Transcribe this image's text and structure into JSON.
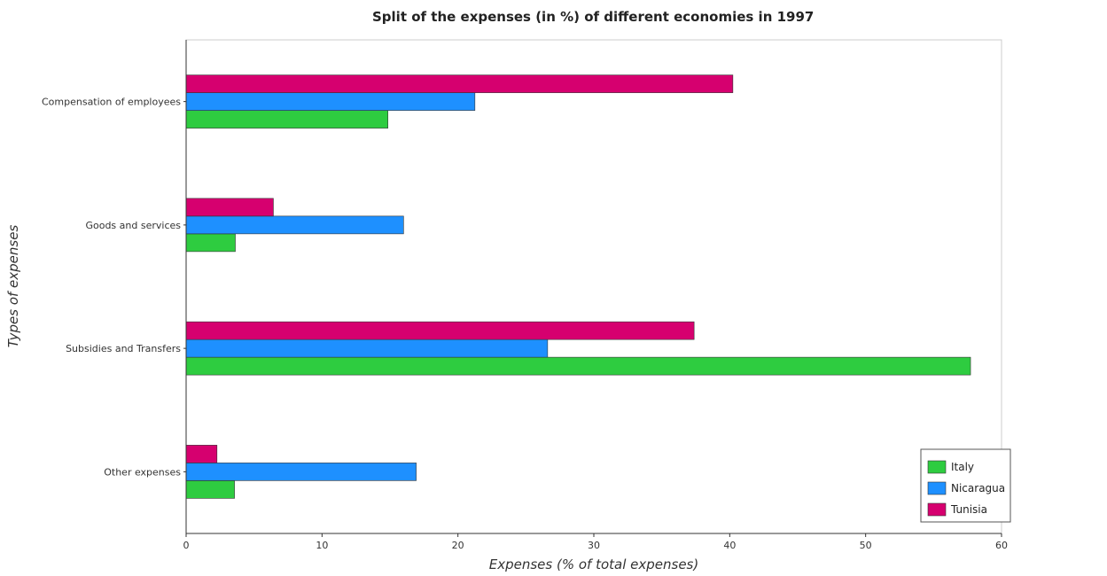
{
  "chart_data": {
    "type": "bar",
    "orientation": "horizontal",
    "title": "Split of the expenses (in %) of different economies in 1997",
    "xlabel": "Expenses (% of total expenses)",
    "ylabel": "Types of expenses",
    "xlim": [
      0,
      60
    ],
    "xticks": [
      0,
      10,
      20,
      30,
      40,
      50,
      60
    ],
    "categories": [
      "Compensation of employees",
      "Goods and services",
      "Subsidies and Transfers",
      "Other expenses"
    ],
    "series": [
      {
        "name": "Italy",
        "color": "#2ecc40",
        "values": [
          14.85,
          3.62,
          57.72,
          3.56
        ]
      },
      {
        "name": "Nicaragua",
        "color": "#1e90ff",
        "values": [
          21.25,
          16.0,
          26.6,
          16.93
        ]
      },
      {
        "name": "Tunisia",
        "color": "#d6006f",
        "values": [
          40.23,
          6.42,
          37.38,
          2.27
        ]
      }
    ],
    "grid": false,
    "legend_position": "bottom-right"
  }
}
